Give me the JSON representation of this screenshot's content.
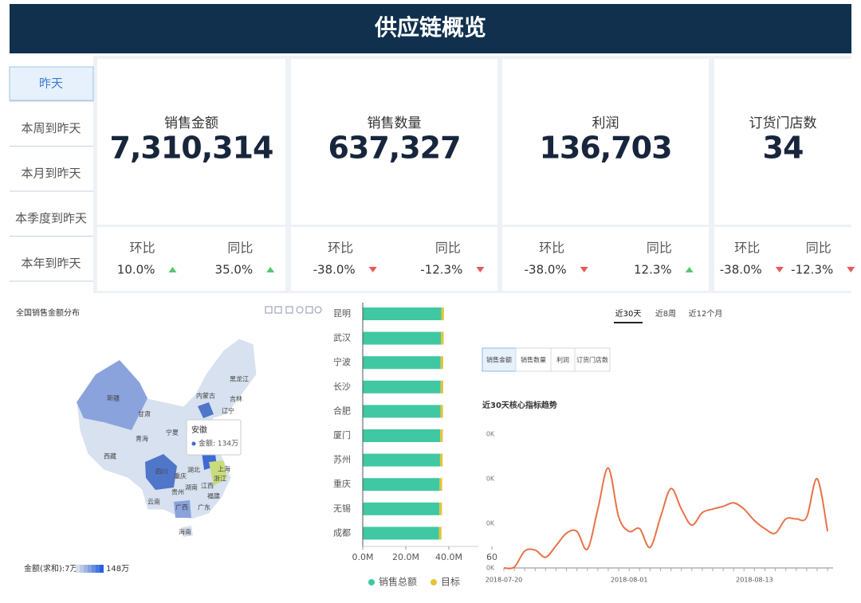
{
  "header": {
    "title": "供应链概览"
  },
  "period_tabs": {
    "items": [
      "昨天",
      "本周到昨天",
      "本月到昨天",
      "本季度到昨天",
      "本年到昨天"
    ],
    "selected": 0
  },
  "kpis": [
    {
      "label": "销售金额",
      "value": "7,310,314",
      "mom_label": "环比",
      "mom": "10.0%",
      "mom_dir": "up",
      "yoy_label": "同比",
      "yoy": "35.0%",
      "yoy_dir": "up"
    },
    {
      "label": "销售数量",
      "value": "637,327",
      "mom_label": "环比",
      "mom": "-38.0%",
      "mom_dir": "down",
      "yoy_label": "同比",
      "yoy": "-12.3%",
      "yoy_dir": "down"
    },
    {
      "label": "利润",
      "value": "136,703",
      "mom_label": "环比",
      "mom": "-38.0%",
      "mom_dir": "down",
      "yoy_label": "同比",
      "yoy": "12.3%",
      "yoy_dir": "up"
    },
    {
      "label": "订货门店数",
      "value": "34",
      "mom_label": "环比",
      "mom": "-38.0%",
      "mom_dir": "down",
      "yoy_label": "同比",
      "yoy": "-12.3%",
      "yoy_dir": "down"
    }
  ],
  "map": {
    "title": "全国销售金额分布",
    "provinces": [
      "新疆",
      "西藏",
      "青海",
      "甘肃",
      "宁夏",
      "内蒙古",
      "黑龙江",
      "吉林",
      "辽宁",
      "四川",
      "重庆",
      "云南",
      "贵州",
      "广西",
      "广东",
      "湖南",
      "湖北",
      "江西",
      "福建",
      "浙江",
      "上海",
      "海南"
    ],
    "tooltip": {
      "name": "安徽",
      "text": "金额: 134万"
    },
    "legend": {
      "min_label": "金额(求和):7万",
      "max_label": "148万"
    }
  },
  "trend_panel": {
    "range_tabs": [
      "近30天",
      "近8周",
      "近12个月"
    ],
    "selected_range": 0,
    "metric_tabs": [
      "销售金额",
      "销售数量",
      "利润",
      "订货门店数"
    ],
    "selected_metric": 0
  },
  "chart_data": [
    {
      "type": "bar",
      "orientation": "horizontal",
      "stacked": true,
      "categories": [
        "昆明",
        "武汉",
        "宁波",
        "长沙",
        "合肥",
        "厦门",
        "苏州",
        "重庆",
        "无锡",
        "成都"
      ],
      "series": [
        {
          "name": "销售总额",
          "color": "#3fc8a1",
          "values": [
            36.5,
            36.4,
            36.2,
            36.2,
            36.1,
            36.0,
            35.9,
            35.7,
            35.6,
            35.4
          ]
        },
        {
          "name": "目标",
          "color": "#e1c53b",
          "values": [
            1.2,
            1.2,
            1.2,
            1.2,
            1.2,
            1.2,
            1.2,
            1.2,
            1.2,
            1.2
          ]
        }
      ],
      "xlim": [
        0,
        60
      ],
      "xticks": [
        {
          "value": 0,
          "label": "0.0M"
        },
        {
          "value": 20,
          "label": "20.0M"
        },
        {
          "value": 40,
          "label": "40.0M"
        },
        60
      ],
      "grid": false,
      "legend": "bottom"
    },
    {
      "type": "line",
      "title": "近30天核心指标趋势",
      "x": [
        "2018-07-20",
        "2018-07-21",
        "2018-07-22",
        "2018-07-23",
        "2018-07-24",
        "2018-07-25",
        "2018-07-26",
        "2018-07-27",
        "2018-07-28",
        "2018-07-29",
        "2018-07-30",
        "2018-07-31",
        "2018-08-01",
        "2018-08-02",
        "2018-08-03",
        "2018-08-04",
        "2018-08-05",
        "2018-08-06",
        "2018-08-07",
        "2018-08-08",
        "2018-08-09",
        "2018-08-10",
        "2018-08-11",
        "2018-08-12",
        "2018-08-13",
        "2018-08-14",
        "2018-08-15",
        "2018-08-16",
        "2018-08-17",
        "2018-08-18",
        "2018-08-19",
        "2018-08-20"
      ],
      "xticks": [
        "2018-07-20",
        "2018-08-01",
        "2018-08-13"
      ],
      "values": [
        0,
        1,
        19,
        20,
        12,
        25,
        39,
        41,
        21,
        66,
        112,
        57,
        41,
        44,
        23,
        57,
        89,
        66,
        48,
        62,
        66,
        69,
        73,
        66,
        53,
        44,
        39,
        55,
        55,
        57,
        100,
        41
      ],
      "color": "#e8734a",
      "ylim": [
        0,
        150
      ],
      "yticks": [
        {
          "value": 0,
          "label": "0K"
        },
        {
          "value": 50,
          "label": "0K"
        },
        {
          "value": 100,
          "label": "0K"
        },
        {
          "value": 150,
          "label": "0K"
        }
      ],
      "grid": false
    }
  ]
}
